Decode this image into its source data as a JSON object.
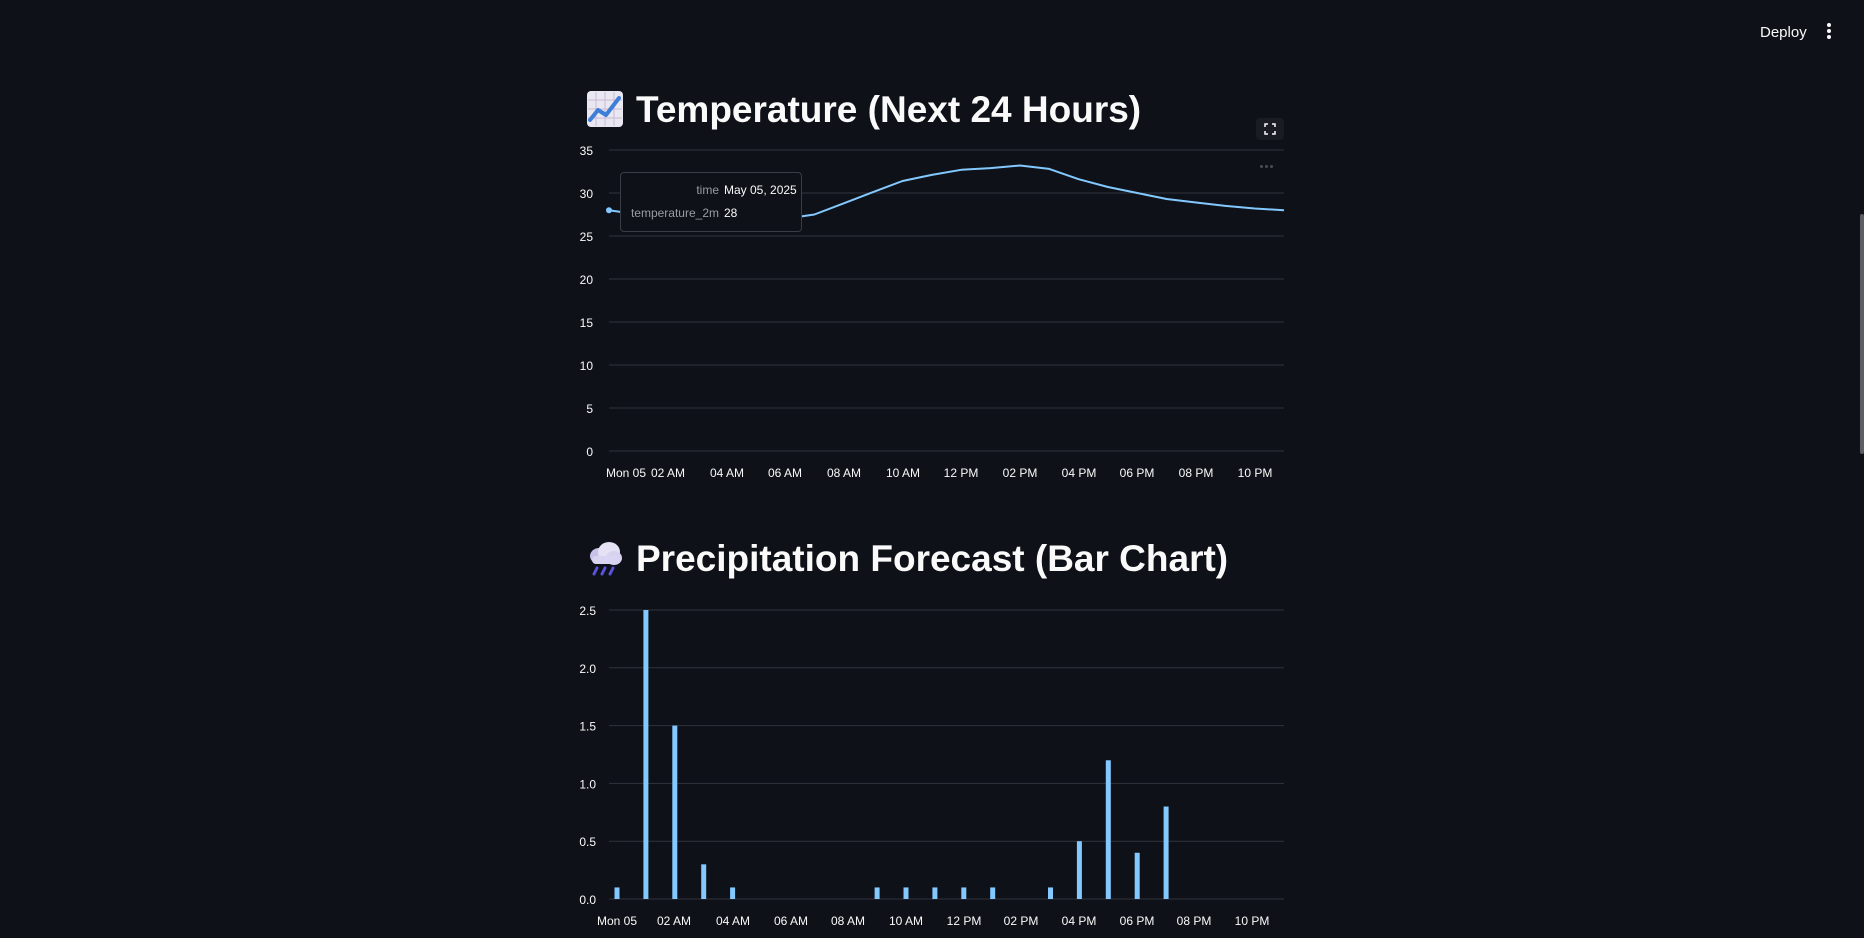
{
  "header": {
    "deploy_label": "Deploy",
    "menu_icon": "vertical-ellipsis-icon"
  },
  "temperature_section": {
    "icon": "chart-increasing-icon",
    "title": "Temperature (Next 24 Hours)",
    "tooltip": {
      "time_key": "time",
      "time_value": "May 05, 2025",
      "temp_key": "temperature_2m",
      "temp_value": "28"
    }
  },
  "precipitation_section": {
    "icon": "cloud-rain-icon",
    "title": "Precipitation Forecast (Bar Chart)"
  },
  "colors": {
    "background": "#0e1117",
    "series": "#83c9ff",
    "grid": "#31333f",
    "text": "#fafafa"
  },
  "chart_data": [
    {
      "type": "line",
      "title": "",
      "xlabel": "",
      "ylabel": "",
      "x_tick_labels": [
        "Mon 05",
        "02 AM",
        "04 AM",
        "06 AM",
        "08 AM",
        "10 AM",
        "12 PM",
        "02 PM",
        "04 PM",
        "06 PM",
        "08 PM",
        "10 PM"
      ],
      "y_ticks": [
        0,
        5,
        10,
        15,
        20,
        25,
        30,
        35
      ],
      "ylim": [
        0,
        35
      ],
      "x": [
        "00:00",
        "01:00",
        "02:00",
        "03:00",
        "04:00",
        "05:00",
        "06:00",
        "07:00",
        "08:00",
        "09:00",
        "10:00",
        "11:00",
        "12:00",
        "13:00",
        "14:00",
        "15:00",
        "16:00",
        "17:00",
        "18:00",
        "19:00",
        "20:00",
        "21:00",
        "22:00",
        "23:00"
      ],
      "series": [
        {
          "values": [
            28,
            27.5,
            27.2,
            26.9,
            26.8,
            26.8,
            27,
            27.5,
            28.8,
            30.1,
            31.4,
            32.1,
            32.7,
            32.9,
            33.2,
            32.8,
            31.6,
            30.7,
            30.0,
            29.3,
            28.9,
            28.5,
            28.2,
            28.0
          ]
        }
      ],
      "grid": true,
      "legend": "none"
    },
    {
      "type": "bar",
      "title": "",
      "xlabel": "",
      "ylabel": "",
      "x_tick_labels": [
        "Mon 05",
        "02 AM",
        "04 AM",
        "06 AM",
        "08 AM",
        "10 AM",
        "12 PM",
        "02 PM",
        "04 PM",
        "06 PM",
        "08 PM",
        "10 PM"
      ],
      "y_ticks": [
        "0.0",
        "0.5",
        "1.0",
        "1.5",
        "2.0",
        "2.5"
      ],
      "ylim": [
        0,
        2.5
      ],
      "x": [
        "00:00",
        "01:00",
        "02:00",
        "03:00",
        "04:00",
        "05:00",
        "06:00",
        "07:00",
        "08:00",
        "09:00",
        "10:00",
        "11:00",
        "12:00",
        "13:00",
        "14:00",
        "15:00",
        "16:00",
        "17:00",
        "18:00",
        "19:00",
        "20:00",
        "21:00",
        "22:00",
        "23:00"
      ],
      "values": [
        0.1,
        2.5,
        1.5,
        0.3,
        0.1,
        0,
        0,
        0,
        0,
        0.1,
        0.1,
        0.1,
        0.1,
        0.1,
        0,
        0.1,
        0.5,
        1.2,
        0.4,
        0.8,
        0,
        0,
        0,
        0
      ],
      "grid": true,
      "legend": "none"
    }
  ]
}
